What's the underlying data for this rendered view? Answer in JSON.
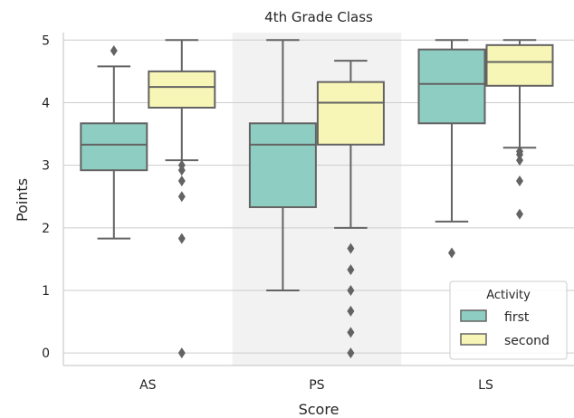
{
  "chart_data": {
    "type": "boxplot",
    "title": "4th Grade Class",
    "xlabel": "Score",
    "ylabel": "Points",
    "ylim": [
      -0.2,
      5.12
    ],
    "yticks": [
      0,
      1,
      2,
      3,
      4,
      5
    ],
    "categories": [
      "AS",
      "PS",
      "LS"
    ],
    "highlighted_category": "PS",
    "grid": "y",
    "legend": {
      "title": "Activity",
      "position": "lower-right"
    },
    "series": [
      {
        "name": "first",
        "color": "#8ecdc2",
        "boxes": [
          {
            "category": "AS",
            "whisker_low": 1.83,
            "q1": 2.92,
            "median": 3.33,
            "q3": 3.67,
            "whisker_high": 4.58,
            "outliers": [
              4.83
            ]
          },
          {
            "category": "PS",
            "whisker_low": 1.0,
            "q1": 2.33,
            "median": 3.33,
            "q3": 3.67,
            "whisker_high": 5.0,
            "outliers": []
          },
          {
            "category": "LS",
            "whisker_low": 2.1,
            "q1": 3.67,
            "median": 4.3,
            "q3": 4.85,
            "whisker_high": 5.0,
            "outliers": [
              1.6
            ]
          }
        ]
      },
      {
        "name": "second",
        "color": "#f7f6b6",
        "boxes": [
          {
            "category": "AS",
            "whisker_low": 3.08,
            "q1": 3.92,
            "median": 4.25,
            "q3": 4.5,
            "whisker_high": 5.0,
            "outliers": [
              3.0,
              2.92,
              2.75,
              2.5,
              1.83,
              0.0
            ]
          },
          {
            "category": "PS",
            "whisker_low": 2.0,
            "q1": 3.33,
            "median": 4.0,
            "q3": 4.33,
            "whisker_high": 4.67,
            "outliers": [
              1.67,
              1.33,
              1.0,
              0.67,
              0.33,
              0.0
            ]
          },
          {
            "category": "LS",
            "whisker_low": 3.28,
            "q1": 4.27,
            "median": 4.65,
            "q3": 4.92,
            "whisker_high": 5.0,
            "outliers": [
              3.22,
              3.17,
              3.08,
              2.75,
              2.22
            ]
          }
        ]
      }
    ]
  }
}
